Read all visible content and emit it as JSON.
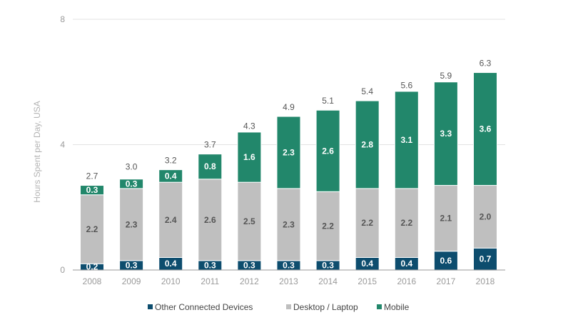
{
  "chart_data": {
    "type": "bar",
    "stacked": true,
    "title": "",
    "xlabel": "",
    "ylabel": "Hours Spent per Day, USA",
    "ylim": [
      0,
      8
    ],
    "yticks": [
      "0",
      "4",
      "8"
    ],
    "grid": true,
    "legend_position": "bottom",
    "categories": [
      "2008",
      "2009",
      "2010",
      "2011",
      "2012",
      "2013",
      "2014",
      "2015",
      "2016",
      "2017",
      "2018"
    ],
    "series": [
      {
        "name": "Other Connected Devices",
        "color": "#0d4d6e",
        "label_color": "#ffffff",
        "values": [
          0.2,
          0.3,
          0.4,
          0.3,
          0.3,
          0.3,
          0.3,
          0.4,
          0.4,
          0.6,
          0.7
        ],
        "labels": [
          "0.2",
          "0.3",
          "0.4",
          "0.3",
          "0.3",
          "0.3",
          "0.3",
          "0.4",
          "0.4",
          "0.6",
          "0.7"
        ]
      },
      {
        "name": "Desktop / Laptop",
        "color": "#bfbfbf",
        "label_color": "#555555",
        "values": [
          2.2,
          2.3,
          2.4,
          2.6,
          2.5,
          2.3,
          2.2,
          2.2,
          2.2,
          2.1,
          2.0
        ],
        "labels": [
          "2.2",
          "2.3",
          "2.4",
          "2.6",
          "2.5",
          "2.3",
          "2.2",
          "2.2",
          "2.2",
          "2.1",
          "2.0"
        ]
      },
      {
        "name": "Mobile",
        "color": "#22876b",
        "label_color": "#ffffff",
        "values": [
          0.3,
          0.3,
          0.4,
          0.8,
          1.6,
          2.3,
          2.6,
          2.8,
          3.1,
          3.3,
          3.6
        ],
        "labels": [
          "0.3",
          "0.3",
          "0.4",
          "0.8",
          "1.6",
          "2.3",
          "2.6",
          "2.8",
          "3.1",
          "3.3",
          "3.6"
        ]
      }
    ],
    "totals": [
      2.7,
      3.0,
      3.2,
      3.7,
      4.3,
      4.9,
      5.1,
      5.4,
      5.6,
      5.9,
      6.3
    ],
    "total_labels": [
      "2.7",
      "3.0",
      "3.2",
      "3.7",
      "4.3",
      "4.9",
      "5.1",
      "5.4",
      "5.6",
      "5.9",
      "6.3"
    ]
  }
}
